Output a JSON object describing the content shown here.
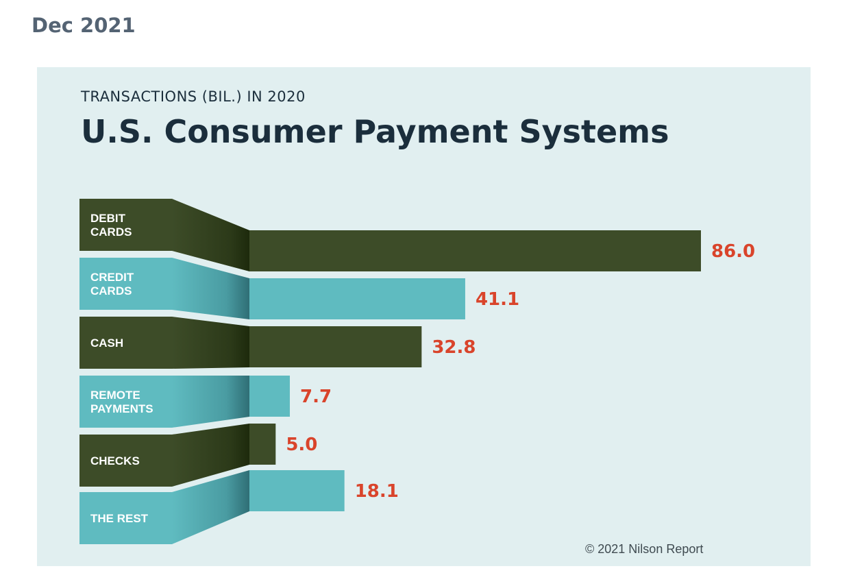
{
  "page": {
    "date": "Dec 2021"
  },
  "colors": {
    "panel_background": "#e1eff0",
    "dark_series": "#3d4c28",
    "light_series": "#5fbbc0",
    "value_text": "#d9442b",
    "title_text": "#1b2e3c"
  },
  "chart_data": {
    "type": "bar",
    "orientation": "horizontal",
    "subtitle": "TRANSACTIONS (BIL.) IN 2020",
    "title": "U.S. Consumer Payment Systems",
    "categories": [
      [
        "DEBIT",
        "CARDS"
      ],
      [
        "CREDIT",
        "CARDS"
      ],
      [
        "CASH"
      ],
      [
        "REMOTE",
        "PAYMENTS"
      ],
      [
        "CHECKS"
      ],
      [
        "THE REST"
      ]
    ],
    "values": [
      86.0,
      41.1,
      32.8,
      7.7,
      5.0,
      18.1
    ],
    "value_labels": [
      "86.0",
      "41.1",
      "32.8",
      "7.7",
      "5.0",
      "18.1"
    ],
    "bar_color_keys": [
      "dark",
      "light",
      "dark",
      "light",
      "dark",
      "light"
    ],
    "xlim": [
      0,
      86.0
    ],
    "grid": false,
    "credit": "© 2021 Nilson Report"
  }
}
